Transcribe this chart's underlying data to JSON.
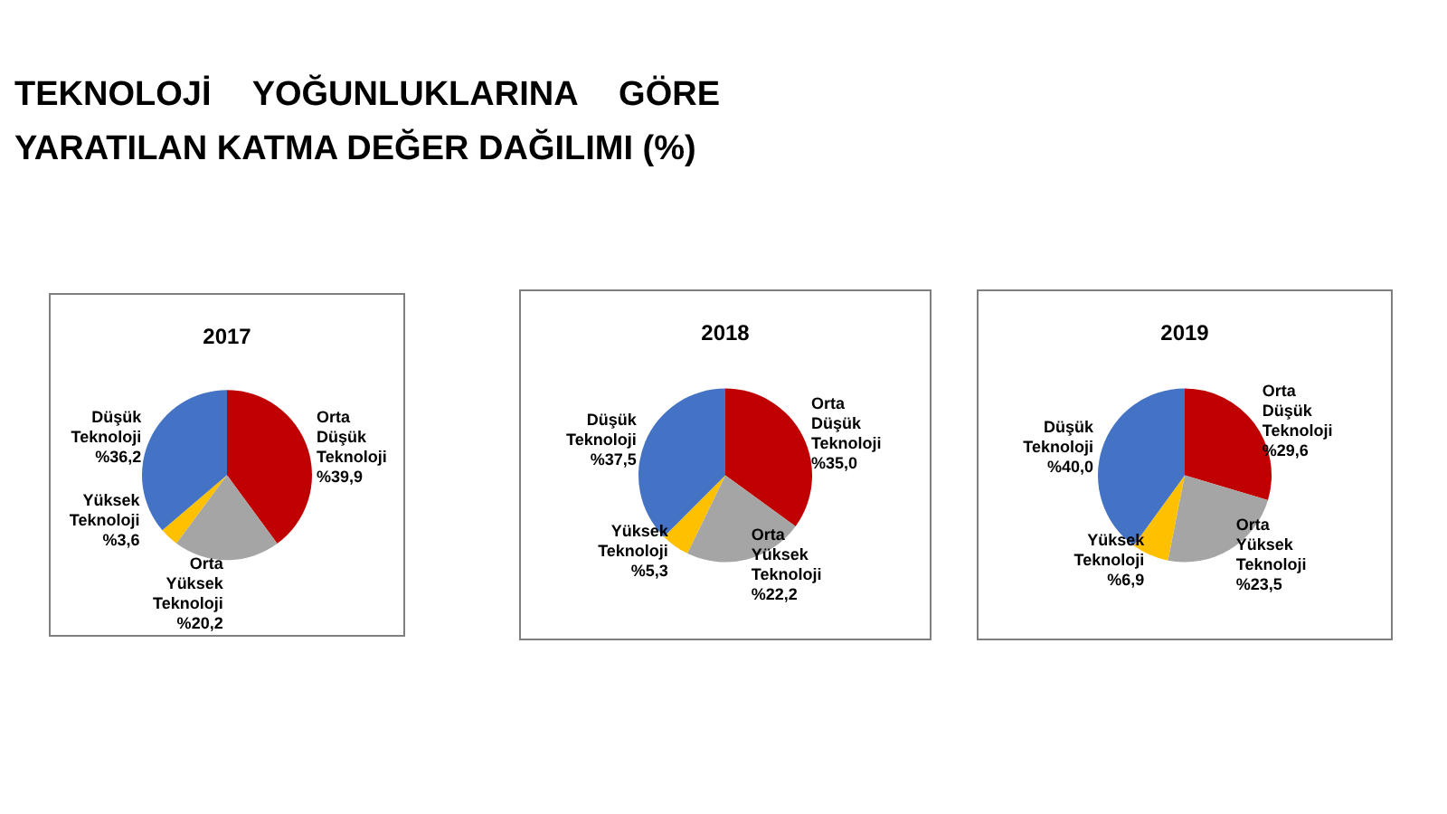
{
  "chart_data": [
    {
      "type": "pie",
      "title": "2017",
      "annotations": [
        "TEKNOLOJİ YOĞUNLUKLARINA GÖRE YARATILAN KATMA DEĞER DAĞILIMI (%)"
      ],
      "categories": [
        "Orta Düşük Teknoloji",
        "Orta Yüksek Teknoloji",
        "Yüksek Teknoloji",
        "Düşük Teknoloji"
      ],
      "values": [
        39.9,
        20.2,
        3.6,
        36.2
      ],
      "colors": [
        "#c00000",
        "#a5a5a5",
        "#ffc000",
        "#4472c4"
      ],
      "value_labels": [
        "%39,9",
        "%20,2",
        "%3,6",
        "%36,2"
      ]
    },
    {
      "type": "pie",
      "title": "2018",
      "categories": [
        "Orta Düşük Teknoloji",
        "Orta Yüksek Teknoloji",
        "Yüksek Teknoloji",
        "Düşük Teknoloji"
      ],
      "values": [
        35.0,
        22.2,
        5.3,
        37.5
      ],
      "colors": [
        "#c00000",
        "#a5a5a5",
        "#ffc000",
        "#4472c4"
      ],
      "value_labels": [
        "%35,0",
        "%22,2",
        "%5,3",
        "%37,5"
      ]
    },
    {
      "type": "pie",
      "title": "2019",
      "categories": [
        "Orta Düşük Teknoloji",
        "Orta Yüksek Teknoloji",
        "Yüksek Teknoloji",
        "Düşük Teknoloji"
      ],
      "values": [
        29.6,
        23.5,
        6.9,
        40.0
      ],
      "colors": [
        "#c00000",
        "#a5a5a5",
        "#ffc000",
        "#4472c4"
      ],
      "value_labels": [
        "%29,6",
        "%23,5",
        "%6,9",
        "%40,0"
      ]
    }
  ]
}
